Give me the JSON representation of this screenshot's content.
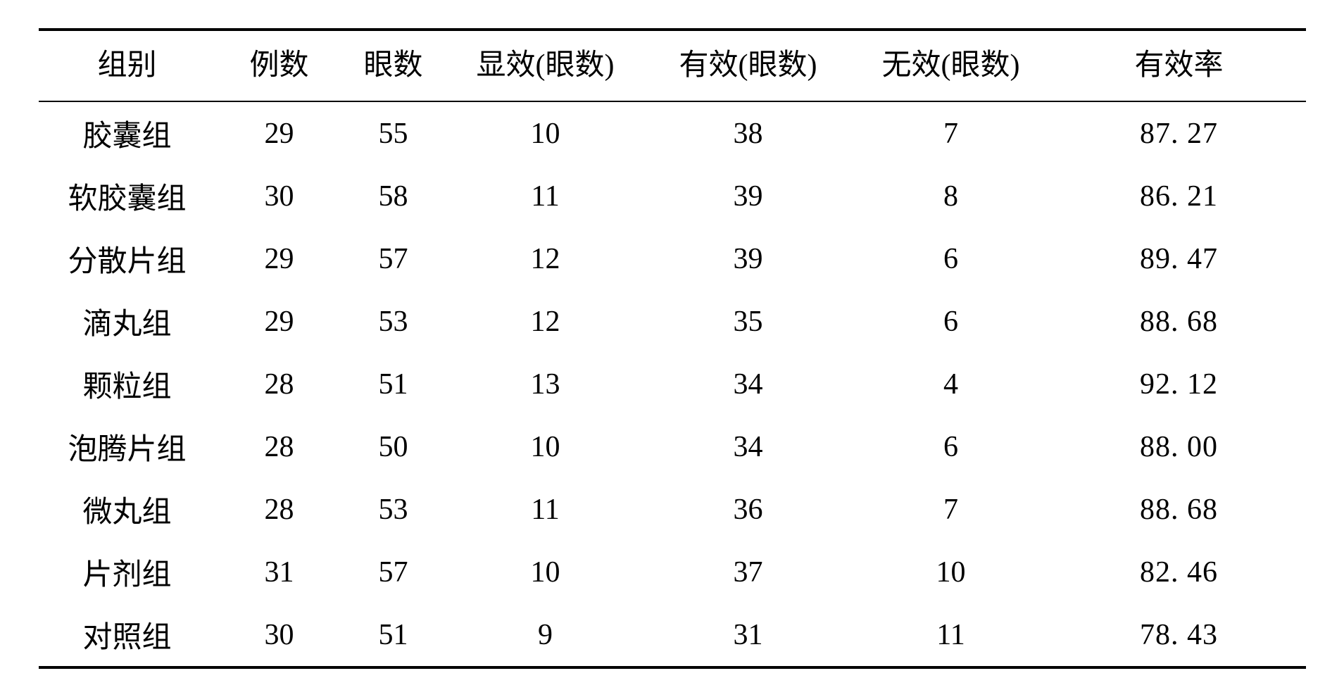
{
  "table": {
    "columns": [
      {
        "label": "组别",
        "key": "group"
      },
      {
        "label": "例数",
        "key": "cases"
      },
      {
        "label": "眼数",
        "key": "eyes"
      },
      {
        "label": "显效(眼数)",
        "key": "marked"
      },
      {
        "label": "有效(眼数)",
        "key": "effective"
      },
      {
        "label": "无效(眼数)",
        "key": "ineffective"
      },
      {
        "label": "有效率",
        "key": "rate"
      }
    ],
    "rows": [
      {
        "group": "胶囊组",
        "cases": "29",
        "eyes": "55",
        "marked": "10",
        "effective": "38",
        "ineffective": "7",
        "rate": "87. 27"
      },
      {
        "group": "软胶囊组",
        "cases": "30",
        "eyes": "58",
        "marked": "11",
        "effective": "39",
        "ineffective": "8",
        "rate": "86. 21"
      },
      {
        "group": "分散片组",
        "cases": "29",
        "eyes": "57",
        "marked": "12",
        "effective": "39",
        "ineffective": "6",
        "rate": "89. 47"
      },
      {
        "group": "滴丸组",
        "cases": "29",
        "eyes": "53",
        "marked": "12",
        "effective": "35",
        "ineffective": "6",
        "rate": "88. 68"
      },
      {
        "group": "颗粒组",
        "cases": "28",
        "eyes": "51",
        "marked": "13",
        "effective": "34",
        "ineffective": "4",
        "rate": "92. 12"
      },
      {
        "group": "泡腾片组",
        "cases": "28",
        "eyes": "50",
        "marked": "10",
        "effective": "34",
        "ineffective": "6",
        "rate": "88. 00"
      },
      {
        "group": "微丸组",
        "cases": "28",
        "eyes": "53",
        "marked": "11",
        "effective": "36",
        "ineffective": "7",
        "rate": "88. 68"
      },
      {
        "group": "片剂组",
        "cases": "31",
        "eyes": "57",
        "marked": "10",
        "effective": "37",
        "ineffective": "10",
        "rate": "82. 46"
      },
      {
        "group": "对照组",
        "cases": "30",
        "eyes": "51",
        "marked": "9",
        "effective": "31",
        "ineffective": "11",
        "rate": "78. 43"
      }
    ],
    "style": {
      "border_color": "#000000",
      "text_color": "#000000",
      "background_color": "#ffffff",
      "font_family": "SimSun",
      "header_fontsize": 42,
      "body_fontsize": 42,
      "top_border_width": 4,
      "header_bottom_border_width": 2,
      "bottom_border_width": 4
    }
  }
}
